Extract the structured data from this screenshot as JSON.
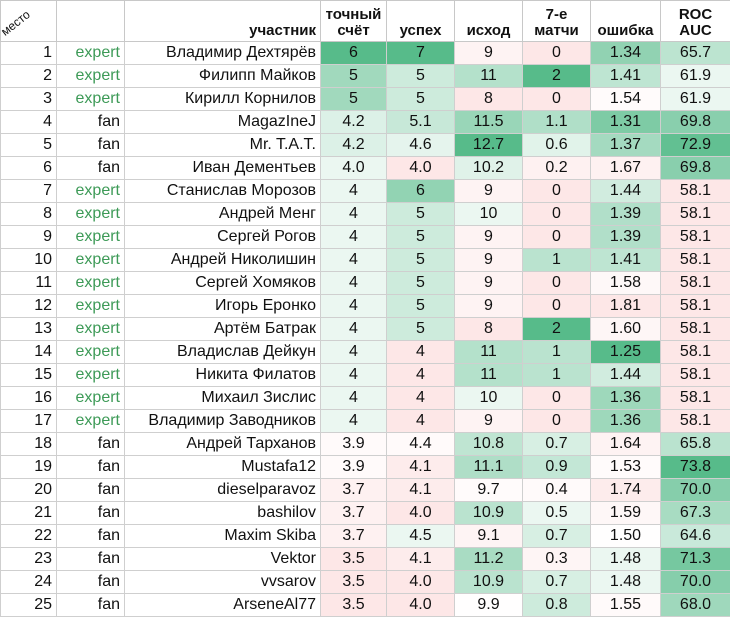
{
  "headers": {
    "place": "место",
    "type": "",
    "name": "участник",
    "exact": [
      "точный",
      "счёт"
    ],
    "success": "успех",
    "outcome": "исход",
    "seven": [
      "7-е",
      "матчи"
    ],
    "error": "ошибка",
    "roc": [
      "ROC",
      "AUC"
    ]
  },
  "rows": [
    {
      "place": "1",
      "type": "expert",
      "name": "Владимир Дехтярёв",
      "exact": "6",
      "success": "7",
      "outcome": "9",
      "seven": "0",
      "error": "1.34",
      "roc": "65.7"
    },
    {
      "place": "2",
      "type": "expert",
      "name": "Филипп Майков",
      "exact": "5",
      "success": "5",
      "outcome": "11",
      "seven": "2",
      "error": "1.41",
      "roc": "61.9"
    },
    {
      "place": "3",
      "type": "expert",
      "name": "Кирилл Корнилов",
      "exact": "5",
      "success": "5",
      "outcome": "8",
      "seven": "0",
      "error": "1.54",
      "roc": "61.9"
    },
    {
      "place": "4",
      "type": "fan",
      "name": "MagazIneJ",
      "exact": "4.2",
      "success": "5.1",
      "outcome": "11.5",
      "seven": "1.1",
      "error": "1.31",
      "roc": "69.8"
    },
    {
      "place": "5",
      "type": "fan",
      "name": "Mr. T.A.T.",
      "exact": "4.2",
      "success": "4.6",
      "outcome": "12.7",
      "seven": "0.6",
      "error": "1.37",
      "roc": "72.9"
    },
    {
      "place": "6",
      "type": "fan",
      "name": "Иван Дементьев",
      "exact": "4.0",
      "success": "4.0",
      "outcome": "10.2",
      "seven": "0.2",
      "error": "1.67",
      "roc": "69.8"
    },
    {
      "place": "7",
      "type": "expert",
      "name": "Станислав Морозов",
      "exact": "4",
      "success": "6",
      "outcome": "9",
      "seven": "0",
      "error": "1.44",
      "roc": "58.1"
    },
    {
      "place": "8",
      "type": "expert",
      "name": "Андрей Менг",
      "exact": "4",
      "success": "5",
      "outcome": "10",
      "seven": "0",
      "error": "1.39",
      "roc": "58.1"
    },
    {
      "place": "9",
      "type": "expert",
      "name": "Сергей Рогов",
      "exact": "4",
      "success": "5",
      "outcome": "9",
      "seven": "0",
      "error": "1.39",
      "roc": "58.1"
    },
    {
      "place": "10",
      "type": "expert",
      "name": "Андрей Николишин",
      "exact": "4",
      "success": "5",
      "outcome": "9",
      "seven": "1",
      "error": "1.41",
      "roc": "58.1"
    },
    {
      "place": "11",
      "type": "expert",
      "name": "Сергей Хомяков",
      "exact": "4",
      "success": "5",
      "outcome": "9",
      "seven": "0",
      "error": "1.58",
      "roc": "58.1"
    },
    {
      "place": "12",
      "type": "expert",
      "name": "Игорь Еронко",
      "exact": "4",
      "success": "5",
      "outcome": "9",
      "seven": "0",
      "error": "1.81",
      "roc": "58.1"
    },
    {
      "place": "13",
      "type": "expert",
      "name": "Артём Батрак",
      "exact": "4",
      "success": "5",
      "outcome": "8",
      "seven": "2",
      "error": "1.60",
      "roc": "58.1"
    },
    {
      "place": "14",
      "type": "expert",
      "name": "Владислав Дейкун",
      "exact": "4",
      "success": "4",
      "outcome": "11",
      "seven": "1",
      "error": "1.25",
      "roc": "58.1"
    },
    {
      "place": "15",
      "type": "expert",
      "name": "Никита Филатов",
      "exact": "4",
      "success": "4",
      "outcome": "11",
      "seven": "1",
      "error": "1.44",
      "roc": "58.1"
    },
    {
      "place": "16",
      "type": "expert",
      "name": "Михаил Зислис",
      "exact": "4",
      "success": "4",
      "outcome": "10",
      "seven": "0",
      "error": "1.36",
      "roc": "58.1"
    },
    {
      "place": "17",
      "type": "expert",
      "name": "Владимир Заводников",
      "exact": "4",
      "success": "4",
      "outcome": "9",
      "seven": "0",
      "error": "1.36",
      "roc": "58.1"
    },
    {
      "place": "18",
      "type": "fan",
      "name": "Андрей Тарханов",
      "exact": "3.9",
      "success": "4.4",
      "outcome": "10.8",
      "seven": "0.7",
      "error": "1.64",
      "roc": "65.8"
    },
    {
      "place": "19",
      "type": "fan",
      "name": "Mustafa12",
      "exact": "3.9",
      "success": "4.1",
      "outcome": "11.1",
      "seven": "0.9",
      "error": "1.53",
      "roc": "73.8"
    },
    {
      "place": "20",
      "type": "fan",
      "name": "dieselparavoz",
      "exact": "3.7",
      "success": "4.1",
      "outcome": "9.7",
      "seven": "0.4",
      "error": "1.74",
      "roc": "70.0"
    },
    {
      "place": "21",
      "type": "fan",
      "name": "bashilov",
      "exact": "3.7",
      "success": "4.0",
      "outcome": "10.9",
      "seven": "0.5",
      "error": "1.59",
      "roc": "67.3"
    },
    {
      "place": "22",
      "type": "fan",
      "name": "Maxim Skiba",
      "exact": "3.7",
      "success": "4.5",
      "outcome": "9.1",
      "seven": "0.7",
      "error": "1.50",
      "roc": "64.6"
    },
    {
      "place": "23",
      "type": "fan",
      "name": "Vektor",
      "exact": "3.5",
      "success": "4.1",
      "outcome": "11.2",
      "seven": "0.3",
      "error": "1.48",
      "roc": "71.3"
    },
    {
      "place": "24",
      "type": "fan",
      "name": "vvsarov",
      "exact": "3.5",
      "success": "4.0",
      "outcome": "10.9",
      "seven": "0.7",
      "error": "1.48",
      "roc": "70.0"
    },
    {
      "place": "25",
      "type": "fan",
      "name": "ArseneAl77",
      "exact": "3.5",
      "success": "4.0",
      "outcome": "9.9",
      "seven": "0.8",
      "error": "1.55",
      "roc": "68.0"
    }
  ],
  "color_scale": {
    "high_green": "#57bb8a",
    "mid_white": "#ffffff",
    "low_red": "#fde7e7",
    "expert_text": "#3d9a57"
  }
}
